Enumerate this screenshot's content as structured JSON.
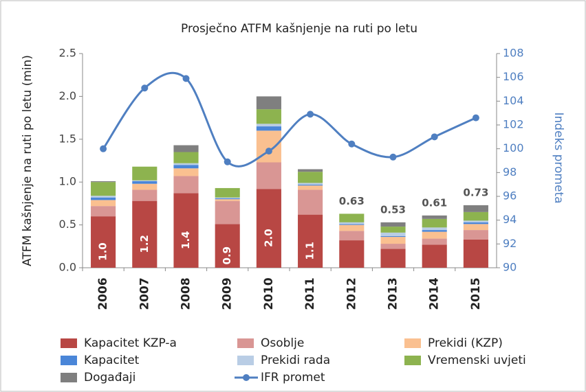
{
  "chart_data": {
    "type": "bar",
    "stacked": true,
    "title": "Prosječno ATFM kašnjenje na ruti po letu",
    "y_label": "ATFM kašnjenje na ruti po letu (min)",
    "y2_label": "Indeks prometa",
    "categories": [
      "2006",
      "2007",
      "2008",
      "2009",
      "2010",
      "2011",
      "2012",
      "2013",
      "2014",
      "2015"
    ],
    "series": [
      {
        "name": "Kapacitet KZP-a",
        "color": "#b84744",
        "values": [
          0.6,
          0.78,
          0.87,
          0.51,
          0.92,
          0.62,
          0.32,
          0.22,
          0.27,
          0.33
        ]
      },
      {
        "name": "Osoblje",
        "color": "#d99694",
        "values": [
          0.12,
          0.13,
          0.2,
          0.27,
          0.31,
          0.29,
          0.11,
          0.06,
          0.07,
          0.11
        ]
      },
      {
        "name": "Prekidi (KZP)",
        "color": "#fac090",
        "values": [
          0.07,
          0.07,
          0.09,
          0.02,
          0.37,
          0.05,
          0.07,
          0.08,
          0.08,
          0.07
        ]
      },
      {
        "name": "Kapacitet",
        "color": "#4a86d8",
        "values": [
          0.03,
          0.03,
          0.04,
          0.01,
          0.05,
          0.01,
          0.01,
          0.01,
          0.02,
          0.02
        ]
      },
      {
        "name": "Prekidi rada",
        "color": "#b9cde5",
        "values": [
          0.02,
          0.01,
          0.02,
          0.01,
          0.03,
          0.02,
          0.02,
          0.04,
          0.03,
          0.02
        ]
      },
      {
        "name": "Vremenski uvjeti",
        "color": "#8db34f",
        "values": [
          0.16,
          0.16,
          0.13,
          0.11,
          0.17,
          0.13,
          0.1,
          0.07,
          0.1,
          0.1
        ]
      },
      {
        "name": "Događaji",
        "color": "#7f7f7f",
        "values": [
          0.01,
          0,
          0.08,
          0,
          0.15,
          0.03,
          0,
          0.05,
          0.04,
          0.08
        ]
      },
      {
        "name": "IFR promet",
        "type": "line",
        "axis": "y2",
        "color": "#4f7fc1",
        "values": [
          100.0,
          105.1,
          105.9,
          98.9,
          99.8,
          102.9,
          100.4,
          99.3,
          101.0,
          102.6
        ]
      }
    ],
    "totals": {
      "values": [
        1.0,
        1.2,
        1.4,
        0.9,
        2.0,
        1.1,
        0.63,
        0.53,
        0.61,
        0.73
      ],
      "value_labels": [
        "1.0",
        "1.2",
        "1.4",
        "0.9",
        "2.0",
        "1.1",
        "0.63",
        "0.53",
        "0.61",
        "0.73"
      ]
    },
    "ylim": [
      0,
      2.5
    ],
    "yticks": [
      {
        "value": 0,
        "label": "0.0"
      },
      0.5,
      {
        "value": 1,
        "label": "1.0"
      },
      1.5,
      {
        "value": 2,
        "label": "2.0"
      },
      2.5
    ],
    "y2lim": [
      90,
      108
    ],
    "y2ticks": [
      90,
      92,
      94,
      96,
      98,
      100,
      102,
      104,
      106,
      108
    ],
    "grid": false,
    "legend": "bottom"
  }
}
